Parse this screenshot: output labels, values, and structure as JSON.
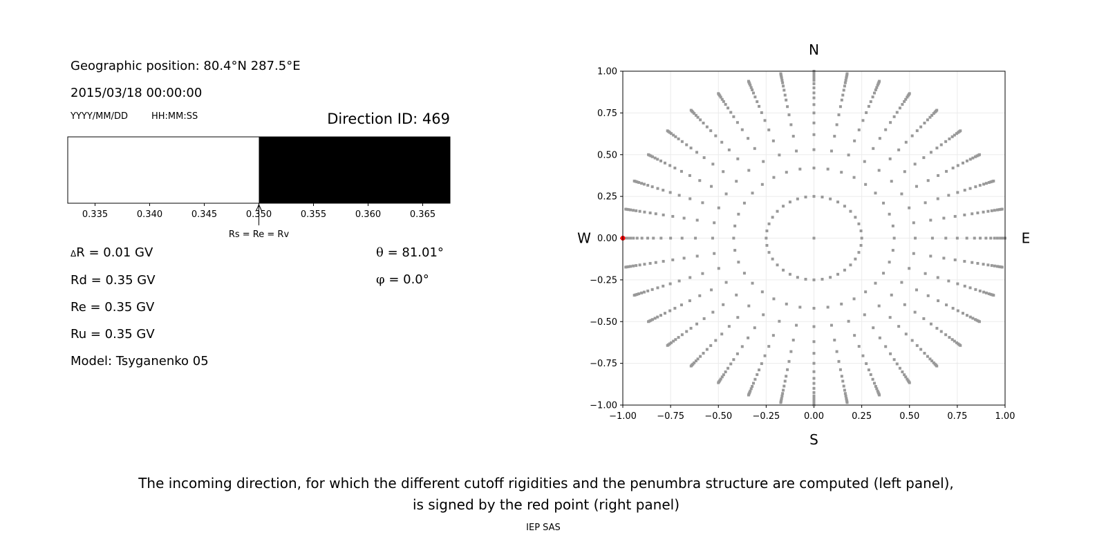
{
  "left_panel": {
    "geo_position": "Geographic position: 80.4°N 287.5°E",
    "datetime": "2015/03/18 00:00:00",
    "date_format": "YYYY/MM/DD",
    "time_format": "HH:MM:SS",
    "direction_id": "Direction ID: 469",
    "delta_r": "R = 0.01 GV",
    "delta_symbol": "Δ",
    "rd": "Rd = 0.35 GV",
    "re": "Re = 0.35 GV",
    "ru": "Ru = 0.35 GV",
    "model": "Model: Tsyganenko 05",
    "theta_symbol": "θ",
    "theta": " = 81.01°",
    "phi_symbol": "φ",
    "phi": " = 0.0°"
  },
  "caption": {
    "line1": "The incoming direction, for which the different cutoff rigidities and the penumbra structure are computed (left panel),",
    "line2": "is signed by the red point (right panel)",
    "credit": "IEP SAS"
  },
  "chart_data": [
    {
      "type": "bar",
      "description_kind": "penumbra",
      "xlim": [
        0.3325,
        0.3675
      ],
      "ticks": [
        "0.335",
        "0.340",
        "0.345",
        "0.350",
        "0.355",
        "0.360",
        "0.365"
      ],
      "tick_values": [
        0.335,
        0.34,
        0.345,
        0.35,
        0.355,
        0.36,
        0.365
      ],
      "segments": [
        {
          "from": 0.3325,
          "to": 0.35,
          "color": "#ffffff"
        },
        {
          "from": 0.35,
          "to": 0.3675,
          "color": "#000000"
        }
      ],
      "annotation": {
        "text": "Rs = Re = Rv",
        "x": 0.35
      }
    },
    {
      "type": "scatter",
      "xlim": [
        -1,
        1
      ],
      "ylim": [
        -1,
        1
      ],
      "grid": true,
      "ticks": [
        "−1.00",
        "−0.75",
        "−0.50",
        "−0.25",
        "0.00",
        "0.25",
        "0.50",
        "0.75",
        "1.00"
      ],
      "tick_values": [
        -1,
        -0.75,
        -0.5,
        -0.25,
        0,
        0.25,
        0.5,
        0.75,
        1
      ],
      "directions": {
        "N": "N",
        "S": "S",
        "W": "W",
        "E": "E"
      },
      "grid_points": {
        "center": [
          0,
          0
        ],
        "radii": [
          0.25,
          0.42,
          0.53,
          0.62,
          0.69,
          0.75,
          0.8,
          0.84,
          0.87,
          0.9,
          0.925,
          0.945,
          0.96,
          0.975,
          0.985,
          0.993,
          1.0
        ],
        "azimuth_step_deg": 10,
        "color": "#999999"
      },
      "selected_point": {
        "x": -1.0,
        "y": 0.0,
        "color": "#ff0000"
      }
    }
  ]
}
